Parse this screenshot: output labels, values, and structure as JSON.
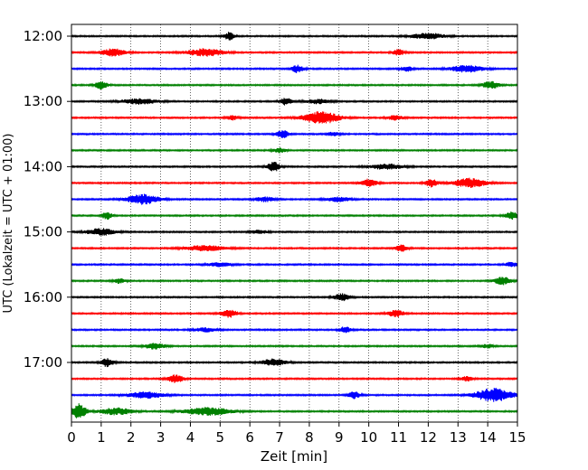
{
  "chart_data": {
    "type": "line",
    "title": "",
    "xlabel": "Zeit  [min]",
    "ylabel": "UTC (Lokalzeit = UTC + 01:00)",
    "xlim": [
      0,
      15
    ],
    "x_ticks": [
      0,
      1,
      2,
      3,
      4,
      5,
      6,
      7,
      8,
      9,
      10,
      11,
      12,
      13,
      14,
      15
    ],
    "y_ticks": [
      "12:00",
      "13:00",
      "14:00",
      "15:00",
      "16:00",
      "17:00"
    ],
    "trace_interval_min": 15,
    "start_time": "12:00",
    "grid": "vertical-dotted",
    "colors": [
      "#000000",
      "#ff0000",
      "#0000ff",
      "#008000"
    ],
    "series": [
      {
        "start": "12:00",
        "color": "#000000",
        "bursts": [
          {
            "t": 5.3,
            "amp": 1.0,
            "w": 0.25
          },
          {
            "t": 12.0,
            "amp": 0.8,
            "w": 0.8
          }
        ]
      },
      {
        "start": "12:15",
        "color": "#ff0000",
        "bursts": [
          {
            "t": 1.4,
            "amp": 1.0,
            "w": 0.6
          },
          {
            "t": 4.5,
            "amp": 1.0,
            "w": 0.9
          },
          {
            "t": 11.0,
            "amp": 0.8,
            "w": 0.3
          }
        ]
      },
      {
        "start": "12:30",
        "color": "#0000ff",
        "bursts": [
          {
            "t": 7.6,
            "amp": 1.0,
            "w": 0.3
          },
          {
            "t": 11.3,
            "amp": 0.6,
            "w": 0.3
          },
          {
            "t": 13.3,
            "amp": 0.9,
            "w": 0.8
          }
        ]
      },
      {
        "start": "12:45",
        "color": "#008000",
        "bursts": [
          {
            "t": 1.0,
            "amp": 1.0,
            "w": 0.3
          },
          {
            "t": 14.1,
            "amp": 1.0,
            "w": 0.4
          }
        ]
      },
      {
        "start": "13:00",
        "color": "#000000",
        "bursts": [
          {
            "t": 2.3,
            "amp": 0.7,
            "w": 0.9
          },
          {
            "t": 7.2,
            "amp": 0.9,
            "w": 0.3
          },
          {
            "t": 8.3,
            "amp": 0.6,
            "w": 0.6
          }
        ]
      },
      {
        "start": "13:15",
        "color": "#ff0000",
        "bursts": [
          {
            "t": 5.4,
            "amp": 0.6,
            "w": 0.3
          },
          {
            "t": 8.4,
            "amp": 1.6,
            "w": 0.9
          },
          {
            "t": 10.9,
            "amp": 0.6,
            "w": 0.4
          }
        ]
      },
      {
        "start": "13:30",
        "color": "#0000ff",
        "bursts": [
          {
            "t": 7.1,
            "amp": 1.0,
            "w": 0.3
          },
          {
            "t": 8.8,
            "amp": 0.5,
            "w": 0.3
          }
        ]
      },
      {
        "start": "13:45",
        "color": "#008000",
        "bursts": [
          {
            "t": 7.0,
            "amp": 0.6,
            "w": 0.3
          }
        ]
      },
      {
        "start": "14:00",
        "color": "#000000",
        "bursts": [
          {
            "t": 6.8,
            "amp": 1.3,
            "w": 0.3
          },
          {
            "t": 10.6,
            "amp": 0.7,
            "w": 0.8
          }
        ]
      },
      {
        "start": "14:15",
        "color": "#ff0000",
        "bursts": [
          {
            "t": 10.0,
            "amp": 1.0,
            "w": 0.4
          },
          {
            "t": 12.1,
            "amp": 1.0,
            "w": 0.3
          },
          {
            "t": 13.4,
            "amp": 1.2,
            "w": 0.8
          }
        ]
      },
      {
        "start": "14:30",
        "color": "#0000ff",
        "bursts": [
          {
            "t": 2.4,
            "amp": 1.3,
            "w": 0.8
          },
          {
            "t": 6.5,
            "amp": 0.6,
            "w": 0.5
          },
          {
            "t": 9.0,
            "amp": 0.6,
            "w": 0.6
          }
        ]
      },
      {
        "start": "14:45",
        "color": "#008000",
        "bursts": [
          {
            "t": 1.2,
            "amp": 1.0,
            "w": 0.25
          },
          {
            "t": 14.8,
            "amp": 1.0,
            "w": 0.3
          }
        ]
      },
      {
        "start": "15:00",
        "color": "#000000",
        "bursts": [
          {
            "t": 1.0,
            "amp": 0.9,
            "w": 0.7
          },
          {
            "t": 6.3,
            "amp": 0.5,
            "w": 0.4
          }
        ]
      },
      {
        "start": "15:15",
        "color": "#ff0000",
        "bursts": [
          {
            "t": 4.5,
            "amp": 0.7,
            "w": 1.0
          },
          {
            "t": 11.1,
            "amp": 0.9,
            "w": 0.3
          }
        ]
      },
      {
        "start": "15:30",
        "color": "#0000ff",
        "bursts": [
          {
            "t": 5.0,
            "amp": 0.5,
            "w": 0.6
          },
          {
            "t": 14.8,
            "amp": 0.6,
            "w": 0.3
          }
        ]
      },
      {
        "start": "15:45",
        "color": "#008000",
        "bursts": [
          {
            "t": 1.6,
            "amp": 0.6,
            "w": 0.3
          },
          {
            "t": 14.5,
            "amp": 1.0,
            "w": 0.4
          }
        ]
      },
      {
        "start": "16:00",
        "color": "#000000",
        "bursts": [
          {
            "t": 9.1,
            "amp": 0.9,
            "w": 0.4
          }
        ]
      },
      {
        "start": "16:15",
        "color": "#ff0000",
        "bursts": [
          {
            "t": 5.3,
            "amp": 1.0,
            "w": 0.4
          },
          {
            "t": 10.9,
            "amp": 0.9,
            "w": 0.4
          }
        ]
      },
      {
        "start": "16:30",
        "color": "#0000ff",
        "bursts": [
          {
            "t": 4.5,
            "amp": 0.5,
            "w": 0.6
          },
          {
            "t": 9.2,
            "amp": 0.8,
            "w": 0.3
          }
        ]
      },
      {
        "start": "16:45",
        "color": "#008000",
        "bursts": [
          {
            "t": 2.8,
            "amp": 0.8,
            "w": 0.5
          },
          {
            "t": 14.0,
            "amp": 0.5,
            "w": 0.3
          }
        ]
      },
      {
        "start": "17:00",
        "color": "#000000",
        "bursts": [
          {
            "t": 1.2,
            "amp": 1.1,
            "w": 0.3
          },
          {
            "t": 6.8,
            "amp": 0.9,
            "w": 0.6
          }
        ]
      },
      {
        "start": "17:15",
        "color": "#ff0000",
        "bursts": [
          {
            "t": 3.5,
            "amp": 1.0,
            "w": 0.4
          },
          {
            "t": 13.3,
            "amp": 0.6,
            "w": 0.3
          }
        ]
      },
      {
        "start": "17:30",
        "color": "#0000ff",
        "bursts": [
          {
            "t": 2.5,
            "amp": 0.8,
            "w": 0.9
          },
          {
            "t": 9.5,
            "amp": 0.9,
            "w": 0.3
          },
          {
            "t": 14.2,
            "amp": 1.8,
            "w": 0.9
          }
        ]
      },
      {
        "start": "17:45",
        "color": "#008000",
        "bursts": [
          {
            "t": 0.25,
            "amp": 2.0,
            "w": 0.35
          },
          {
            "t": 1.5,
            "amp": 0.9,
            "w": 0.8
          },
          {
            "t": 4.6,
            "amp": 1.0,
            "w": 1.2
          }
        ]
      }
    ]
  }
}
